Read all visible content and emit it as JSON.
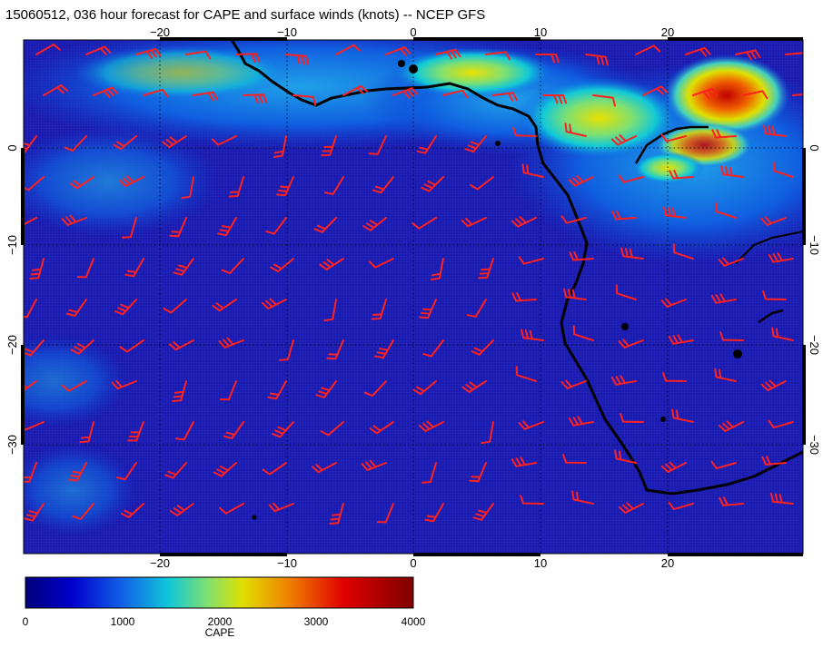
{
  "title": "15060512, 036 hour forecast for CAPE and surface winds (knots) -- NCEP GFS",
  "map": {
    "lon_range": [
      -30,
      30
    ],
    "lat_range": [
      -40,
      10
    ],
    "lon_ticks": [
      -20,
      -10,
      0,
      10,
      20
    ],
    "lat_ticks": [
      0,
      -10,
      -20,
      -30
    ],
    "gridlines": "dotted",
    "coastline_color": "#000000",
    "wind_barb_color": "#ff2020",
    "field": "CAPE"
  },
  "colorbar": {
    "title": "CAPE",
    "min": 0,
    "max": 4000,
    "tick_labels": [
      "0",
      "1000",
      "2000",
      "3000",
      "4000"
    ],
    "colors": [
      "#00007a",
      "#0000cc",
      "#1060e8",
      "#10c8d8",
      "#80e070",
      "#e0e000",
      "#f08000",
      "#e00000",
      "#800000"
    ]
  }
}
